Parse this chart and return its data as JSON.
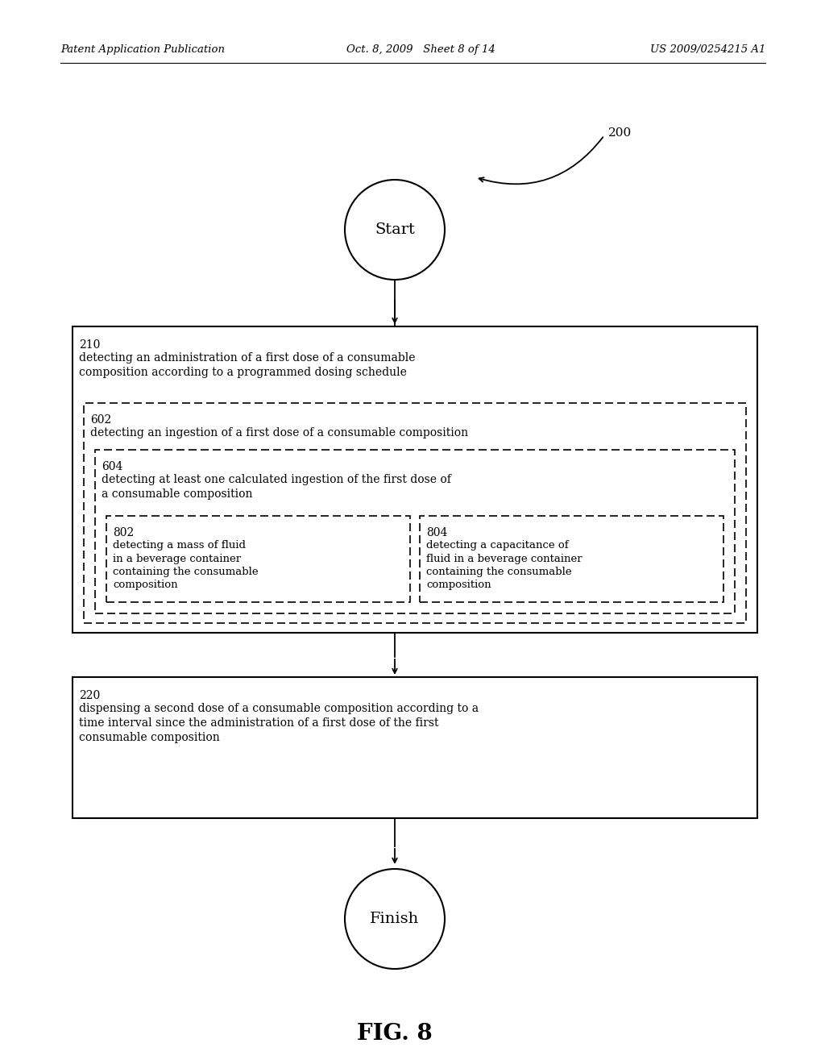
{
  "bg_color": "#ffffff",
  "header_left": "Patent Application Publication",
  "header_mid": "Oct. 8, 2009   Sheet 8 of 14",
  "header_right": "US 2009/0254215 A1",
  "fig_label": "FIG. 8",
  "diagram_label": "200",
  "start_label": "Start",
  "finish_label": "Finish",
  "box210_id": "210",
  "box210_text": "detecting an administration of a first dose of a consumable\ncomposition according to a programmed dosing schedule",
  "box602_id": "602",
  "box602_text": "detecting an ingestion of a first dose of a consumable composition",
  "box604_id": "604",
  "box604_text": "detecting at least one calculated ingestion of the first dose of\na consumable composition",
  "box802_id": "802",
  "box802_text": "detecting a mass of fluid\nin a beverage container\ncontaining the consumable\ncomposition",
  "box804_id": "804",
  "box804_text": "detecting a capacitance of\nfluid in a beverage container\ncontaining the consumable\ncomposition",
  "box220_id": "220",
  "box220_text": "dispensing a second dose of a consumable composition according to a\ntime interval since the administration of a first dose of the first\nconsumable composition"
}
